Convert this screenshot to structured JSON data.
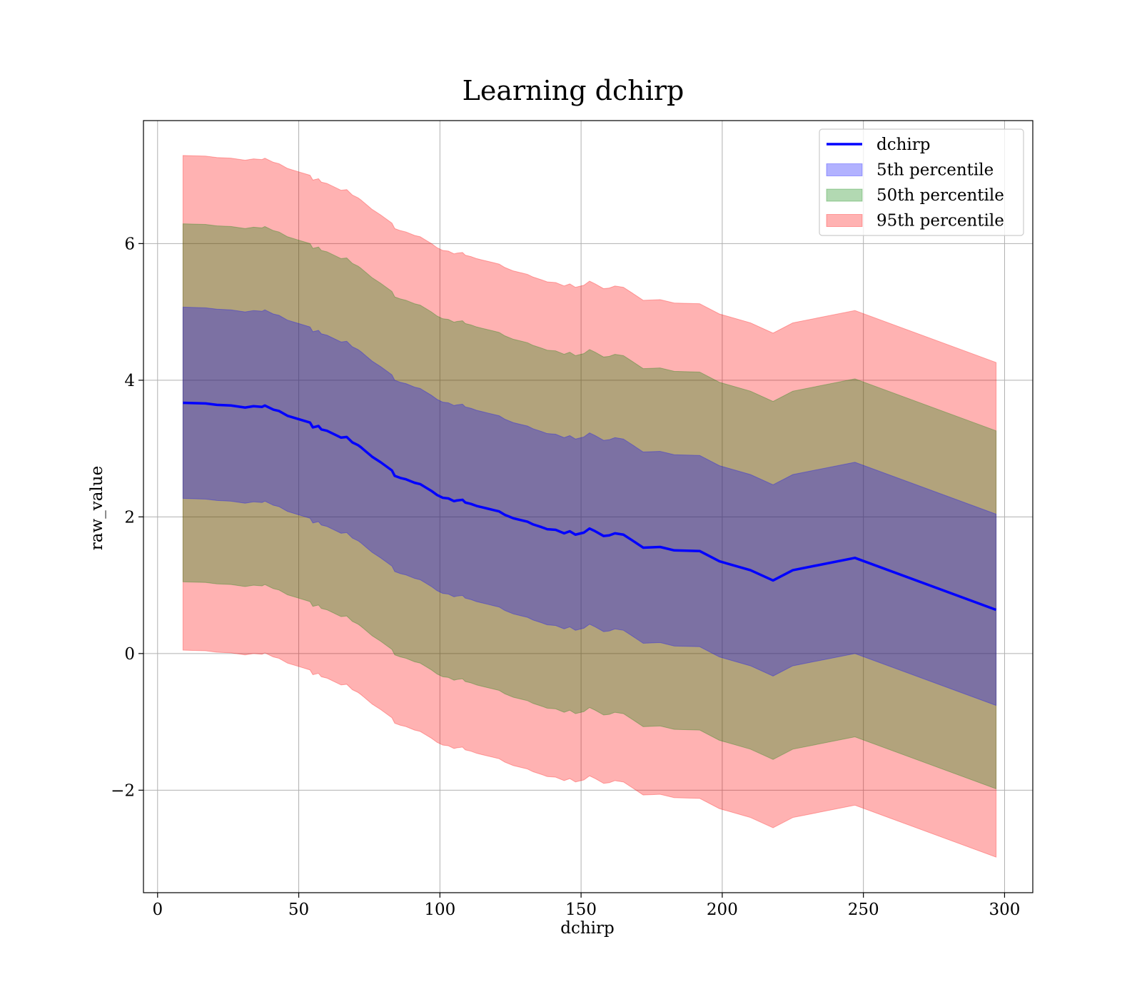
{
  "chart_data": {
    "type": "area",
    "title": "Learning dchirp",
    "xlabel": "dchirp",
    "ylabel": "raw_value",
    "xlim": [
      -5,
      310
    ],
    "ylim": [
      -3.5,
      7.8
    ],
    "xticks": [
      0,
      50,
      100,
      150,
      200,
      250,
      300
    ],
    "yticks": [
      -2,
      0,
      2,
      4,
      6
    ],
    "xtick_labels": [
      "0",
      "50",
      "100",
      "150",
      "200",
      "250",
      "300"
    ],
    "ytick_labels": [
      "−2",
      "0",
      "2",
      "4",
      "6"
    ],
    "grid": true,
    "legend_position": "upper-right",
    "x": [
      9,
      17,
      21,
      26,
      31,
      34,
      37,
      38,
      41,
      43,
      46,
      50,
      54,
      55,
      57,
      58,
      60,
      63,
      65,
      67,
      69,
      71,
      72,
      74,
      76,
      79,
      81,
      83,
      84,
      86,
      88,
      91,
      93,
      95,
      97,
      99,
      101,
      103,
      105,
      106,
      108,
      109,
      111,
      113,
      115,
      117,
      119,
      121,
      123,
      126,
      129,
      131,
      133,
      136,
      138,
      141,
      144,
      146,
      148,
      151,
      153,
      155,
      158,
      160,
      162,
      165,
      168,
      172,
      178,
      183,
      192,
      199,
      210,
      218,
      225,
      247,
      297
    ],
    "series": [
      {
        "name": "dchirp",
        "color": "#0000ff",
        "values": [
          3.67,
          3.66,
          3.64,
          3.63,
          3.6,
          3.62,
          3.61,
          3.63,
          3.57,
          3.55,
          3.48,
          3.43,
          3.38,
          3.31,
          3.33,
          3.28,
          3.26,
          3.2,
          3.16,
          3.17,
          3.09,
          3.05,
          3.02,
          2.95,
          2.88,
          2.8,
          2.74,
          2.68,
          2.6,
          2.57,
          2.55,
          2.5,
          2.48,
          2.43,
          2.38,
          2.32,
          2.28,
          2.27,
          2.23,
          2.24,
          2.25,
          2.21,
          2.19,
          2.16,
          2.14,
          2.12,
          2.1,
          2.08,
          2.03,
          1.98,
          1.95,
          1.93,
          1.89,
          1.85,
          1.82,
          1.81,
          1.76,
          1.79,
          1.74,
          1.77,
          1.83,
          1.79,
          1.72,
          1.73,
          1.76,
          1.74,
          1.66,
          1.55,
          1.56,
          1.51,
          1.5,
          1.35,
          1.22,
          1.07,
          1.22,
          1.4,
          0.64
        ]
      }
    ],
    "bands": [
      {
        "name": "5th percentile",
        "color": "#0000ff",
        "opacity": 0.3,
        "half_width": 1.4
      },
      {
        "name": "50th percentile",
        "color": "#008000",
        "opacity": 0.3,
        "half_width": 2.62
      },
      {
        "name": "95th percentile",
        "color": "#ff0000",
        "opacity": 0.3,
        "half_width": 3.62
      }
    ]
  },
  "legend": {
    "items": [
      {
        "label": "dchirp",
        "kind": "line",
        "color": "#0000ff"
      },
      {
        "label": "5th percentile",
        "kind": "patch",
        "color": "#0000ff"
      },
      {
        "label": "50th percentile",
        "kind": "patch",
        "color": "#008000"
      },
      {
        "label": "95th percentile",
        "kind": "patch",
        "color": "#ff0000"
      }
    ]
  }
}
